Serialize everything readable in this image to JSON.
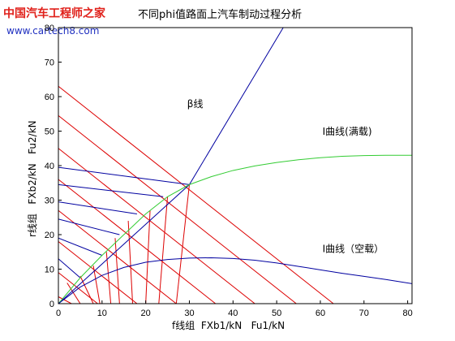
{
  "watermark": {
    "brand": "中国汽车工程师之家",
    "url": "www.cartech8.com"
  },
  "chart_data": {
    "type": "line",
    "title": "不同phi值路面上汽车制动过程分析",
    "xlabel": "f线组  FXb1/kN   Fu1/kN",
    "ylabel": "r线组   FXb2/kN   Fu2/kN",
    "xlim": [
      0,
      81
    ],
    "ylim": [
      0,
      80
    ],
    "xticks": [
      0,
      10,
      20,
      30,
      40,
      50,
      60,
      70,
      80
    ],
    "yticks": [
      0,
      10,
      20,
      30,
      40,
      50,
      60,
      70,
      80
    ],
    "grid": false,
    "series": [
      {
        "name": "β线",
        "color": "#0000a0",
        "points": [
          [
            0,
            0
          ],
          [
            30,
            34.5
          ],
          [
            51.5,
            80
          ]
        ]
      },
      {
        "name": "I曲线(满载)",
        "color": "#33cc33",
        "points": [
          [
            0,
            0
          ],
          [
            5,
            7.5
          ],
          [
            10,
            14
          ],
          [
            15,
            20
          ],
          [
            20,
            26
          ],
          [
            25,
            31
          ],
          [
            30,
            34.5
          ],
          [
            35,
            36.8
          ],
          [
            40,
            38.6
          ],
          [
            45,
            39.9
          ],
          [
            50,
            40.9
          ],
          [
            55,
            41.7
          ],
          [
            60,
            42.3
          ],
          [
            65,
            42.7
          ],
          [
            70,
            42.9
          ],
          [
            75,
            43
          ],
          [
            81,
            43
          ]
        ]
      },
      {
        "name": "I曲线（空载）",
        "color": "#0000a0",
        "points": [
          [
            0,
            0
          ],
          [
            5,
            4.8
          ],
          [
            10,
            8.2
          ],
          [
            15,
            10.5
          ],
          [
            20,
            12
          ],
          [
            25,
            12.8
          ],
          [
            30,
            13.2
          ],
          [
            35,
            13.3
          ],
          [
            40,
            13.1
          ],
          [
            45,
            12.6
          ],
          [
            50,
            11.8
          ],
          [
            55,
            10.8
          ],
          [
            60,
            9.8
          ],
          [
            65,
            8.8
          ],
          [
            70,
            7.9
          ],
          [
            75,
            7
          ],
          [
            81,
            5.8
          ]
        ]
      }
    ],
    "f_lines": [
      {
        "phi_point": [
          0,
          0
        ],
        "y0": 7
      },
      {
        "phi_point": [
          5,
          7.5
        ],
        "y0": 13
      },
      {
        "phi_point": [
          10,
          14
        ],
        "y0": 19
      },
      {
        "phi_point": [
          14,
          20
        ],
        "y0": 24.5
      },
      {
        "phi_point": [
          18,
          26
        ],
        "y0": 29.5
      },
      {
        "phi_point": [
          24,
          31
        ],
        "y0": 34.5
      },
      {
        "phi_point": [
          30,
          34.5
        ],
        "y0": 39.5
      }
    ],
    "r_lines": [
      {
        "x0": 3,
        "end": [
          0,
          2
        ]
      },
      {
        "x0": 5,
        "end": [
          2,
          6
        ]
      },
      {
        "x0": 8,
        "end": [
          5,
          8
        ]
      },
      {
        "x0": 9.5,
        "end": [
          8,
          11
        ]
      },
      {
        "x0": 12,
        "end": [
          11,
          15
        ]
      },
      {
        "x0": 14,
        "end": [
          13,
          19
        ]
      },
      {
        "x0": 17,
        "end": [
          16,
          24
        ]
      },
      {
        "x0": 20,
        "end": [
          21,
          27
        ]
      },
      {
        "x0": 23,
        "end": [
          25,
          31
        ]
      },
      {
        "x0": 27,
        "end": [
          30,
          34.5
        ]
      }
    ],
    "diag_lines_y0": [
      63,
      54.5,
      45,
      36,
      27,
      18,
      9
    ],
    "annotations": [
      {
        "text": "β线",
        "x": 29.5,
        "y": 57
      },
      {
        "text": "I曲线(满载)",
        "x": 60.5,
        "y": 49
      },
      {
        "text": "I曲线（空载）",
        "x": 60.5,
        "y": 15
      }
    ]
  }
}
